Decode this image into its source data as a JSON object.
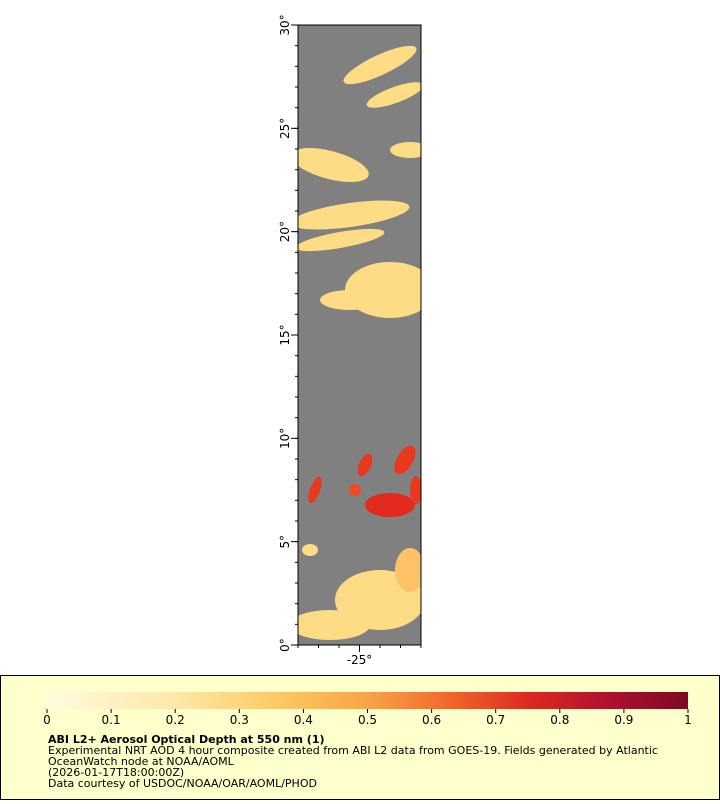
{
  "map": {
    "xlim": [
      -28,
      -22
    ],
    "ylim": [
      0,
      30
    ],
    "xticks": [
      {
        "value": -25,
        "label": "-25°"
      }
    ],
    "yticks": [
      {
        "value": 0,
        "label": "0°"
      },
      {
        "value": 5,
        "label": "5°"
      },
      {
        "value": 10,
        "label": "10°"
      },
      {
        "value": 15,
        "label": "15°"
      },
      {
        "value": 20,
        "label": "20°"
      },
      {
        "value": 25,
        "label": "25°"
      },
      {
        "value": 30,
        "label": "30°"
      }
    ]
  },
  "legend": {
    "title": "ABI L2+ Aerosol Optical Depth at 550 nm (1)",
    "lines": [
      "Experimental NRT AOD 4 hour composite created from ABI L2 data from GOES-19. Fields generated by Atlantic",
      "OceanWatch node at NOAA/AOML",
      "(2026-01-17T18:00:00Z)",
      "Data courtesy of USDOC/NOAA/OAR/AOML/PHOD"
    ],
    "colorbar": {
      "lim": [
        0,
        1
      ],
      "ticks": [
        0,
        0.1,
        0.2,
        0.3,
        0.4,
        0.5,
        0.6,
        0.7,
        0.8,
        0.9,
        1
      ]
    }
  }
}
